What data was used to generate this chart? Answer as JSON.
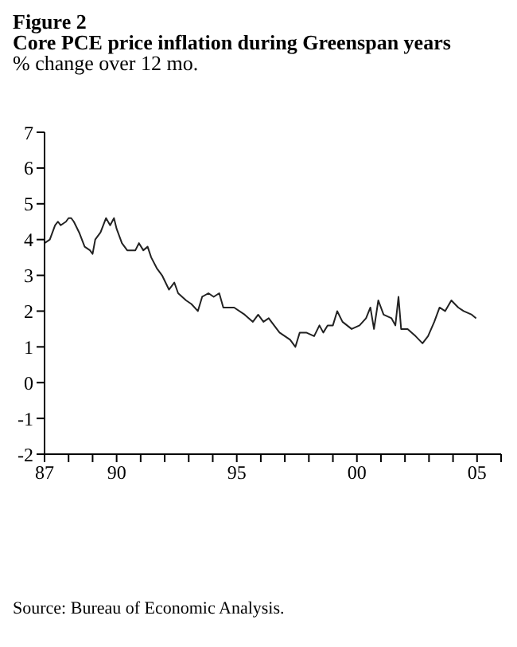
{
  "chart_data": {
    "type": "line",
    "title": "Figure 2\nCore PCE price inflation during Greenspan years",
    "subtitle": "% change over 12 mo.",
    "annotations": [
      "Source: Bureau of Economic Analysis."
    ],
    "x": [
      1987.0,
      1987.22,
      1987.44,
      1987.56,
      1987.67,
      1987.89,
      1988.0,
      1988.11,
      1988.22,
      1988.44,
      1988.67,
      1988.89,
      1989.0,
      1989.11,
      1989.33,
      1989.56,
      1989.73,
      1989.89,
      1990.0,
      1990.22,
      1990.44,
      1990.78,
      1990.93,
      1991.11,
      1991.29,
      1991.44,
      1991.67,
      1991.89,
      1992.18,
      1992.4,
      1992.56,
      1992.89,
      1993.11,
      1993.38,
      1993.56,
      1993.82,
      1994.04,
      1994.27,
      1994.44,
      1994.89,
      1995.33,
      1995.67,
      1995.89,
      1996.11,
      1996.33,
      1996.44,
      1996.78,
      1997.0,
      1997.22,
      1997.44,
      1997.62,
      1997.89,
      1998.22,
      1998.44,
      1998.6,
      1998.78,
      1999.0,
      1999.18,
      1999.4,
      1999.78,
      2000.11,
      2000.38,
      2000.56,
      2000.71,
      2000.89,
      2001.11,
      2001.44,
      2001.6,
      2001.73,
      2001.84,
      2002.11,
      2002.44,
      2002.73,
      2002.96,
      2003.22,
      2003.44,
      2003.67,
      2003.93,
      2004.22,
      2004.44,
      2004.78,
      2004.96
    ],
    "series": [
      {
        "color": "#222222",
        "values": [
          3.9,
          4.0,
          4.4,
          4.5,
          4.4,
          4.5,
          4.6,
          4.6,
          4.5,
          4.2,
          3.8,
          3.7,
          3.6,
          4.0,
          4.2,
          4.6,
          4.4,
          4.6,
          4.3,
          3.9,
          3.7,
          3.7,
          3.9,
          3.7,
          3.8,
          3.5,
          3.2,
          3.0,
          2.6,
          2.8,
          2.5,
          2.3,
          2.2,
          2.0,
          2.4,
          2.5,
          2.4,
          2.5,
          2.1,
          2.1,
          1.9,
          1.7,
          1.9,
          1.7,
          1.8,
          1.7,
          1.4,
          1.3,
          1.2,
          1.0,
          1.4,
          1.4,
          1.3,
          1.6,
          1.4,
          1.6,
          1.6,
          2.0,
          1.7,
          1.5,
          1.6,
          1.8,
          2.1,
          1.5,
          2.3,
          1.9,
          1.8,
          1.6,
          2.4,
          1.5,
          1.5,
          1.3,
          1.1,
          1.3,
          1.7,
          2.1,
          2.0,
          2.3,
          2.1,
          2.0,
          1.9,
          1.8
        ]
      }
    ],
    "xlim": [
      1987,
      2006
    ],
    "xticks": [
      {
        "value": 1987,
        "label": "87"
      },
      {
        "value": 1988,
        "label": null
      },
      {
        "value": 1989,
        "label": null
      },
      {
        "value": 1990,
        "label": "90"
      },
      {
        "value": 1991,
        "label": null
      },
      {
        "value": 1992,
        "label": null
      },
      {
        "value": 1993,
        "label": null
      },
      {
        "value": 1994,
        "label": null
      },
      {
        "value": 1995,
        "label": "95"
      },
      {
        "value": 1996,
        "label": null
      },
      {
        "value": 1997,
        "label": null
      },
      {
        "value": 1998,
        "label": null
      },
      {
        "value": 1999,
        "label": null
      },
      {
        "value": 2000,
        "label": "00"
      },
      {
        "value": 2001,
        "label": null
      },
      {
        "value": 2002,
        "label": null
      },
      {
        "value": 2003,
        "label": null
      },
      {
        "value": 2004,
        "label": null
      },
      {
        "value": 2005,
        "label": "05"
      },
      {
        "value": 2006,
        "label": null
      }
    ],
    "ylim": [
      -2,
      7
    ],
    "yticks": [
      -2,
      -1,
      0,
      1,
      2,
      3,
      4,
      5,
      6,
      7
    ],
    "grid": false,
    "legend": false,
    "marker": "none",
    "line_style": "solid"
  }
}
